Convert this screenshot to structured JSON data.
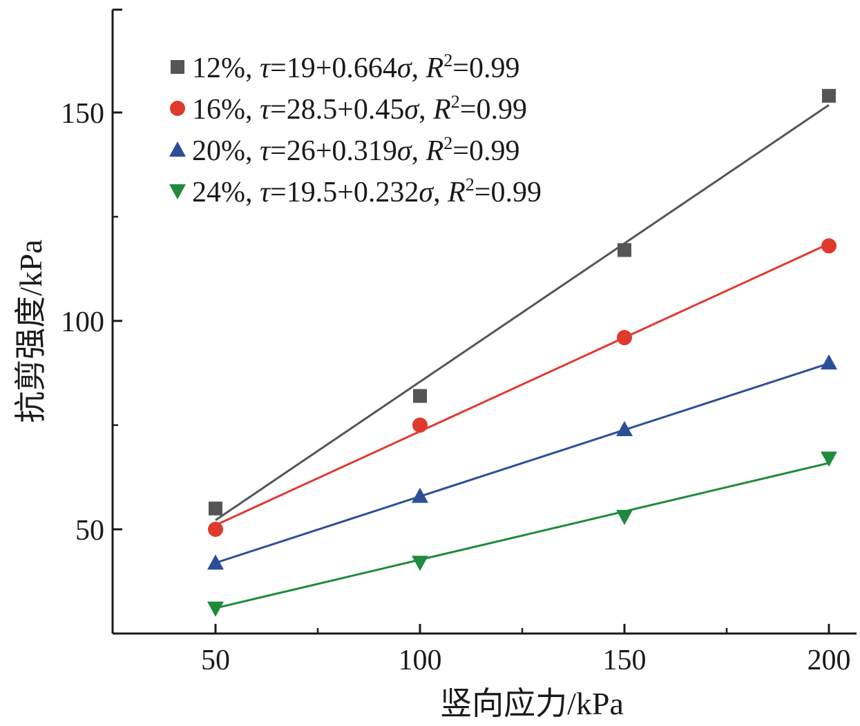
{
  "chart_data": {
    "type": "scatter",
    "title": "",
    "xlabel": "竖向应力/kPa",
    "ylabel": "抗剪强度/kPa",
    "xlim": [
      25,
      205
    ],
    "ylim": [
      25,
      175
    ],
    "xticks": [
      50,
      100,
      150,
      200
    ],
    "xticks_minor": [
      75,
      125,
      175
    ],
    "yticks": [
      50,
      100,
      150
    ],
    "yticks_minor": [
      75,
      125
    ],
    "grid": false,
    "legend_position": "top-left",
    "x": [
      50,
      100,
      150,
      200
    ],
    "series": [
      {
        "name": "12%, τ=19+0.664σ, R²=0.99",
        "legend_parts": {
          "moisture": "12%, ",
          "fit": "=19+0.664",
          "r2": "=0.99"
        },
        "marker": "square",
        "color": "#555555",
        "values": [
          55,
          82,
          117,
          154
        ],
        "fit": {
          "intercept": 19,
          "slope": 0.664
        }
      },
      {
        "name": "16%, τ=28.5+0.45σ, R²=0.99",
        "legend_parts": {
          "moisture": "16%, ",
          "fit": "=28.5+0.45",
          "r2": "=0.99"
        },
        "marker": "circle",
        "color": "#e03a2f",
        "values": [
          50,
          75,
          96,
          118
        ],
        "fit": {
          "intercept": 28.5,
          "slope": 0.45
        }
      },
      {
        "name": "20%, τ=26+0.319σ, R²=0.99",
        "legend_parts": {
          "moisture": "20%, ",
          "fit": "=26+0.319",
          "r2": "=0.99"
        },
        "marker": "triangle-up",
        "color": "#2b4f97",
        "values": [
          42,
          58,
          74,
          90
        ],
        "fit": {
          "intercept": 26,
          "slope": 0.319
        }
      },
      {
        "name": "24%, τ=19.5+0.232σ, R²=0.99",
        "legend_parts": {
          "moisture": "24%, ",
          "fit": "=19.5+0.232",
          "r2": "=0.99"
        },
        "marker": "triangle-down",
        "color": "#1f8a3c",
        "values": [
          31,
          42,
          53,
          67
        ],
        "fit": {
          "intercept": 19.5,
          "slope": 0.232
        }
      }
    ],
    "symbols": {
      "tau": "τ",
      "sigma": "σ",
      "r": "R",
      "sup": "2"
    }
  }
}
